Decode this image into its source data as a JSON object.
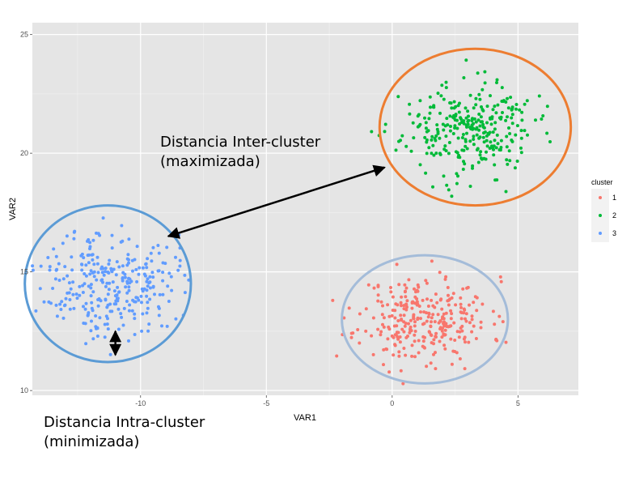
{
  "chart_data": {
    "type": "scatter",
    "title": "",
    "xlabel": "VAR1",
    "ylabel": "VAR2",
    "xlim": [
      -14.3,
      7.4
    ],
    "ylim": [
      9.8,
      25.5
    ],
    "xticks": [
      -10,
      -5,
      0,
      5
    ],
    "xtick_labels": [
      "-10",
      "-5",
      "0",
      "5"
    ],
    "yticks": [
      10,
      15,
      20,
      25
    ],
    "ytick_labels": [
      "10",
      "15",
      "20",
      "25"
    ],
    "grid": true,
    "legend": {
      "title": "cluster",
      "placement": "right",
      "entries": [
        {
          "label": "1",
          "color": "#f8766d"
        },
        {
          "label": "2",
          "color": "#00ba38"
        },
        {
          "label": "3",
          "color": "#619cff"
        }
      ]
    },
    "series": [
      {
        "name": "1",
        "color": "#f8766d",
        "center": [
          1.3,
          13.0
        ],
        "spread": [
          1.3,
          0.9
        ],
        "n": 300,
        "seed": 11
      },
      {
        "name": "2",
        "color": "#00ba38",
        "center": [
          3.0,
          21.0
        ],
        "spread": [
          1.3,
          0.95
        ],
        "n": 300,
        "seed": 23
      },
      {
        "name": "3",
        "color": "#619cff",
        "center": [
          -11.2,
          14.6
        ],
        "spread": [
          1.3,
          1.1
        ],
        "n": 300,
        "seed": 37
      }
    ],
    "annotations": {
      "inter_cluster": {
        "line1": "Distancia Inter-cluster",
        "line2": "(maximizada)"
      },
      "intra_cluster": {
        "line1": "Distancia Intra-cluster",
        "line2": "(minimizada)"
      }
    },
    "overlays": {
      "circles": [
        {
          "name": "cluster-1-circle",
          "color": "#a4bcd9",
          "center": [
            1.3,
            13.0
          ],
          "radius": [
            3.3,
            2.7
          ]
        },
        {
          "name": "cluster-2-circle",
          "color": "#ed7d31",
          "center": [
            3.3,
            21.1
          ],
          "radius": [
            3.8,
            3.3
          ]
        },
        {
          "name": "cluster-3-circle",
          "color": "#5b9bd5",
          "center": [
            -11.3,
            14.5
          ],
          "radius": [
            3.3,
            3.3
          ]
        }
      ],
      "inter_arrow": {
        "from": [
          -8.9,
          16.5
        ],
        "to": [
          -0.3,
          19.4
        ]
      },
      "intra_arrow": {
        "x": -11.0,
        "from": [
          -11.0,
          11.5
        ],
        "to": [
          -11.0,
          12.5
        ]
      }
    }
  }
}
